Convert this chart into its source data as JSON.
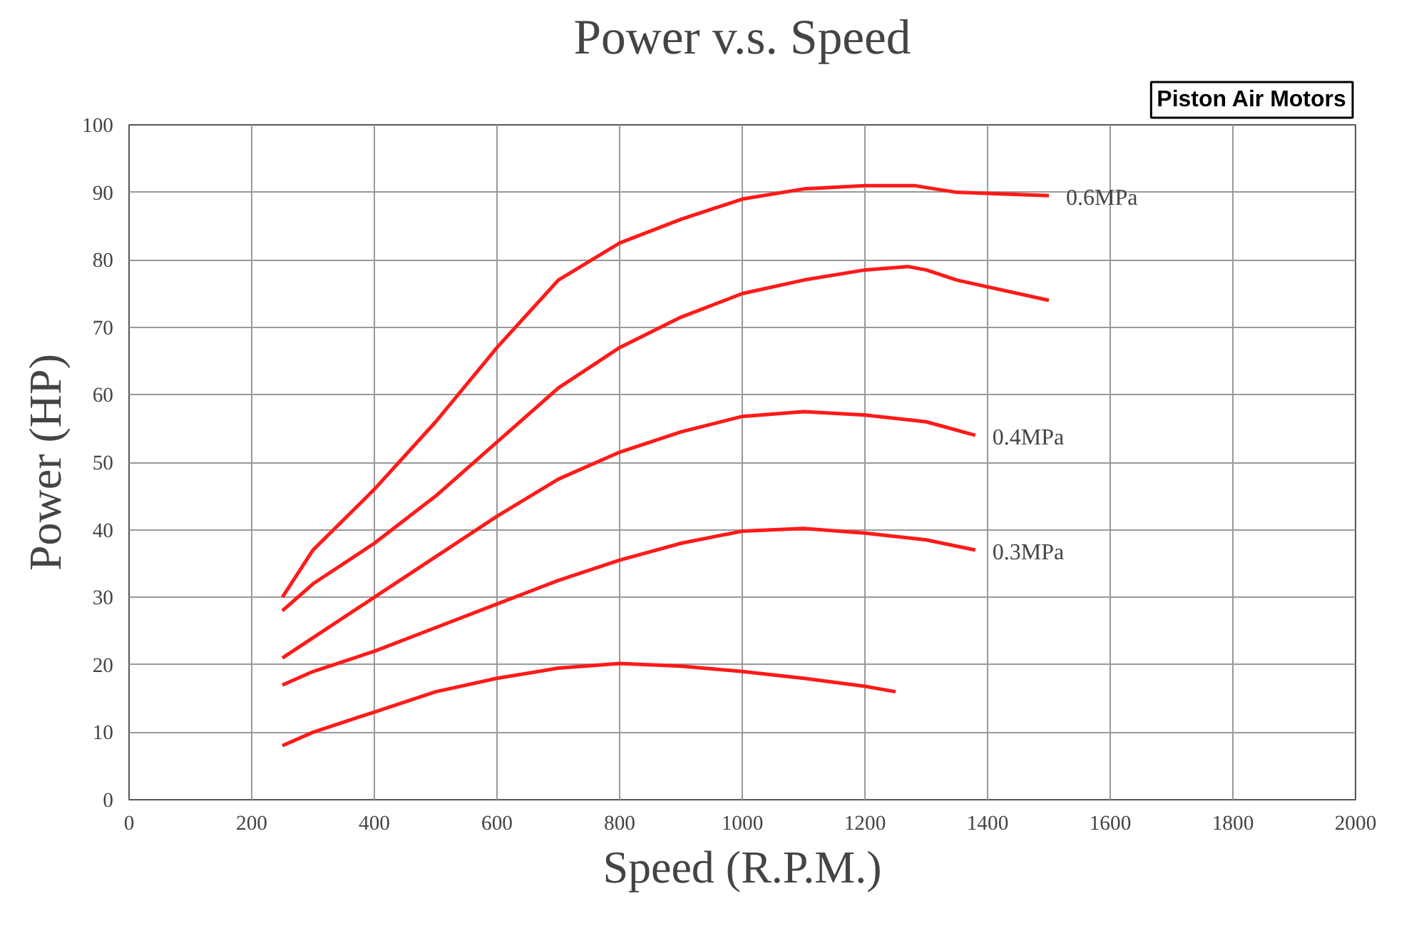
{
  "chart_data": {
    "type": "line",
    "title": "Power v.s. Speed",
    "xlabel": "Speed (R.P.M.)",
    "ylabel": "Power (HP)",
    "annotations": [
      "Piston Air Motors"
    ],
    "xlim": [
      0,
      2000
    ],
    "xticks": [
      0,
      200,
      400,
      600,
      800,
      1000,
      1200,
      1400,
      1600,
      1800,
      2000
    ],
    "ylim": [
      0,
      100
    ],
    "yticks": [
      0,
      10,
      20,
      30,
      40,
      50,
      60,
      70,
      80,
      90,
      100
    ],
    "grid": true,
    "marker": "none",
    "line_style": "solid",
    "series": [
      {
        "name": "0.6MPa",
        "color": "#ff1a1a",
        "x": [
          250,
          300,
          400,
          500,
          600,
          700,
          800,
          900,
          1000,
          1100,
          1200,
          1280,
          1350,
          1500
        ],
        "values": [
          30,
          37,
          46,
          56,
          67,
          77,
          82.5,
          86,
          89,
          90.5,
          91,
          91,
          90,
          89.5
        ]
      },
      {
        "color": "#ff1a1a",
        "x": [
          250,
          300,
          400,
          500,
          600,
          700,
          800,
          900,
          1000,
          1100,
          1200,
          1270,
          1300,
          1350,
          1500
        ],
        "values": [
          28,
          32,
          38,
          45,
          53,
          61,
          67,
          71.5,
          75,
          77,
          78.5,
          79,
          78.5,
          77,
          74
        ]
      },
      {
        "name": "0.4MPa",
        "color": "#ff1a1a",
        "x": [
          250,
          300,
          400,
          500,
          600,
          700,
          800,
          900,
          1000,
          1100,
          1200,
          1300,
          1380
        ],
        "values": [
          21,
          24,
          30,
          36,
          42,
          47.5,
          51.5,
          54.5,
          56.8,
          57.5,
          57,
          56,
          54
        ]
      },
      {
        "name": "0.3MPa",
        "color": "#ff1a1a",
        "x": [
          250,
          300,
          400,
          500,
          600,
          700,
          800,
          900,
          1000,
          1100,
          1200,
          1300,
          1380
        ],
        "values": [
          17,
          19,
          22,
          25.5,
          29,
          32.5,
          35.5,
          38,
          39.8,
          40.2,
          39.5,
          38.5,
          37
        ]
      },
      {
        "color": "#ff1a1a",
        "x": [
          250,
          300,
          400,
          500,
          600,
          700,
          800,
          900,
          1000,
          1100,
          1200,
          1250
        ],
        "values": [
          8,
          10,
          13,
          16,
          18,
          19.5,
          20.2,
          19.8,
          19,
          18,
          16.8,
          16
        ]
      }
    ]
  }
}
